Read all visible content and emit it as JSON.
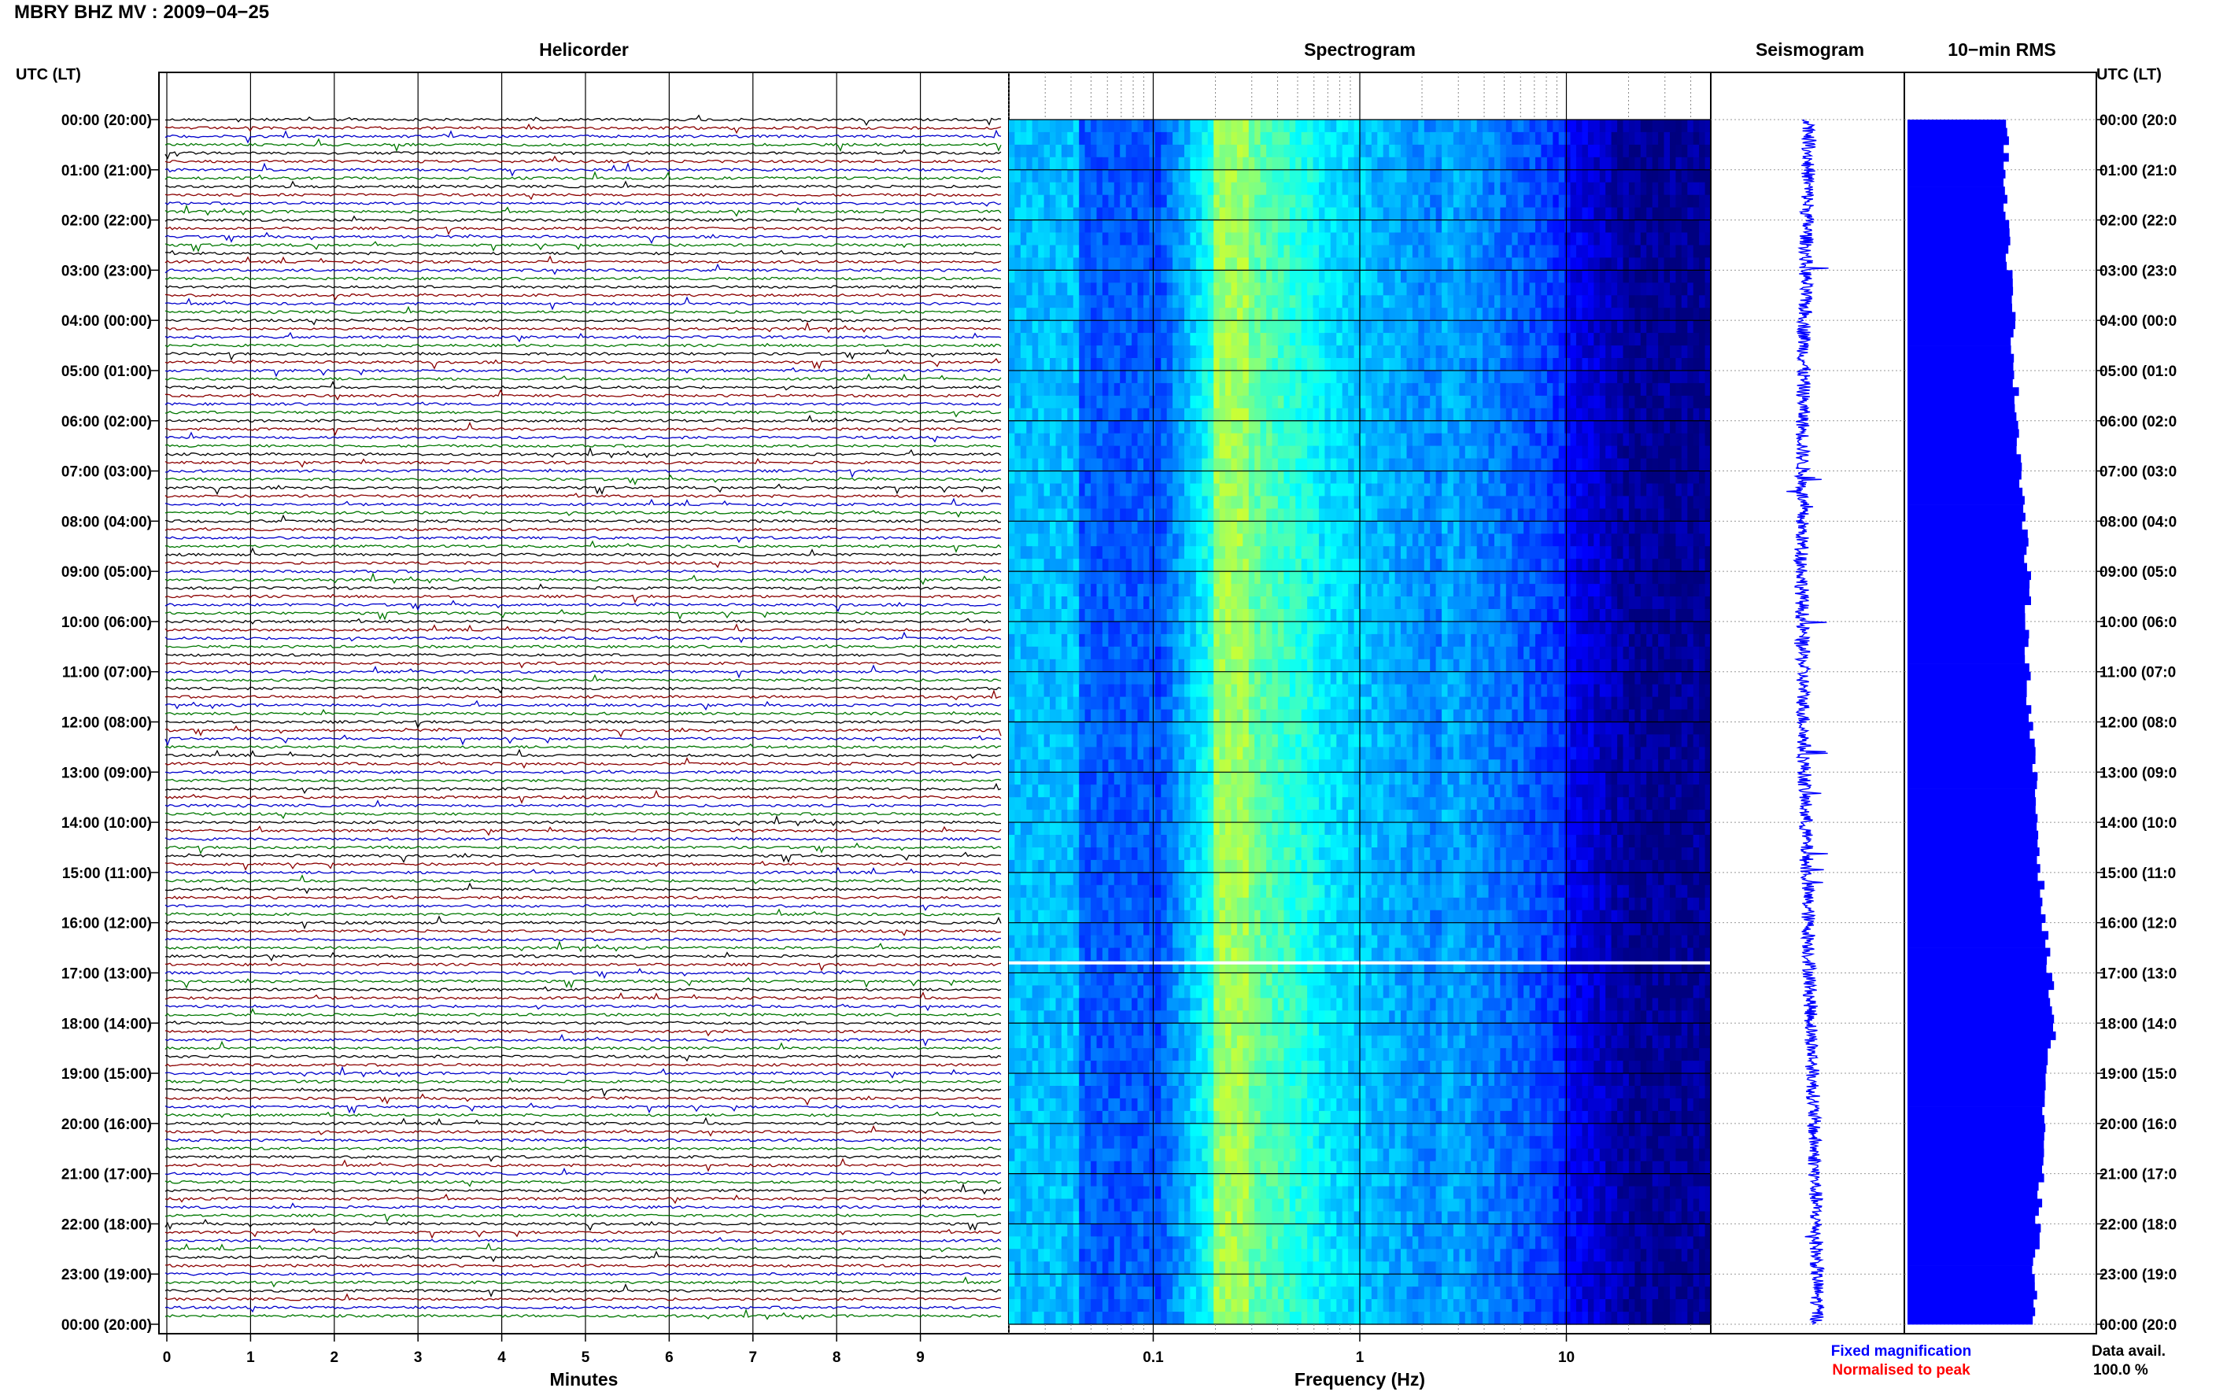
{
  "title": "MBRY BHZ MV : 2009−04−25",
  "panels": {
    "helicorder": "Helicorder",
    "spectrogram": "Spectrogram",
    "seismogram": "Seismogram",
    "rms": "10−min RMS"
  },
  "left_header": "UTC (LT)",
  "right_header": "UTC (LT)",
  "time_labels": [
    "00:00 (20:00)",
    "01:00 (21:00)",
    "02:00 (22:00)",
    "03:00 (23:00)",
    "04:00 (00:00)",
    "05:00 (01:00)",
    "06:00 (02:00)",
    "07:00 (03:00)",
    "08:00 (04:00)",
    "09:00 (05:00)",
    "10:00 (06:00)",
    "11:00 (07:00)",
    "12:00 (08:00)",
    "13:00 (09:00)",
    "14:00 (10:00)",
    "15:00 (11:00)",
    "16:00 (12:00)",
    "17:00 (13:00)",
    "18:00 (14:00)",
    "19:00 (15:00)",
    "20:00 (16:00)",
    "21:00 (17:00)",
    "22:00 (18:00)",
    "23:00 (19:00)",
    "00:00 (20:00)"
  ],
  "right_time_labels": [
    "00:00 (20:0",
    "01:00 (21:0",
    "02:00 (22:0",
    "03:00 (23:0",
    "04:00 (00:0",
    "05:00 (01:0",
    "06:00 (02:0",
    "07:00 (03:0",
    "08:00 (04:0",
    "09:00 (05:0",
    "10:00 (06:0",
    "11:00 (07:0",
    "12:00 (08:0",
    "13:00 (09:0",
    "14:00 (10:0",
    "15:00 (11:0",
    "16:00 (12:0",
    "17:00 (13:0",
    "18:00 (14:0",
    "19:00 (15:0",
    "20:00 (16:0",
    "21:00 (17:0",
    "22:00 (18:0",
    "23:00 (19:0",
    "00:00 (20:0"
  ],
  "legend": {
    "fixed": "Fixed magnification",
    "normalised": "Normalised to peak",
    "data_avail_label": "Data avail.",
    "data_avail_value": "100.0 %",
    "fixed_color": "#0000ff",
    "normalised_color": "#ff0000"
  },
  "chart_data": [
    {
      "type": "line",
      "name": "Helicorder",
      "xlabel": "Minutes",
      "x_ticks": [
        "0",
        "1",
        "2",
        "3",
        "4",
        "5",
        "6",
        "7",
        "8",
        "9"
      ],
      "xlim": [
        0,
        10
      ],
      "rows_per_hour": 6,
      "trace_colors": [
        "#000000",
        "#8b0000",
        "#0000cc",
        "#007700"
      ],
      "grid": true
    },
    {
      "type": "heatmap",
      "name": "Spectrogram",
      "xlabel": "Frequency (Hz)",
      "x_ticks": [
        "0.1",
        "1",
        "10"
      ],
      "x_scale": "log",
      "xlim": [
        0.02,
        50
      ],
      "colormap": [
        "#00007f",
        "#0000ff",
        "#0080ff",
        "#00ffff",
        "#80ff80",
        "#ffff00"
      ],
      "grid": true
    },
    {
      "type": "line",
      "name": "Seismogram",
      "color": "#0000ff"
    },
    {
      "type": "bar",
      "name": "10-min RMS",
      "color": "#0000ff",
      "orientation": "horizontal",
      "values_hourly_relative": [
        0.62,
        0.6,
        0.61,
        0.63,
        0.65,
        0.66,
        0.68,
        0.7,
        0.72,
        0.74,
        0.74,
        0.74,
        0.76,
        0.78,
        0.8,
        0.82,
        0.84,
        0.88,
        0.9,
        0.85,
        0.83,
        0.82,
        0.8,
        0.78,
        0.78
      ]
    }
  ]
}
